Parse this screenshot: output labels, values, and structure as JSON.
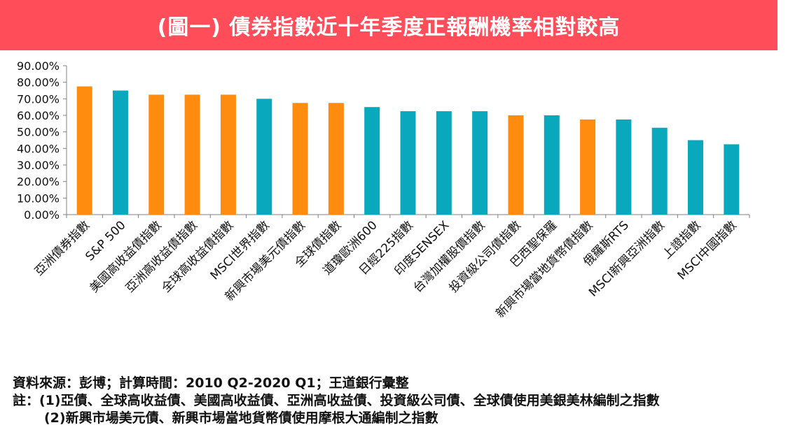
{
  "header": {
    "title": "(圖一) 債券指數近十年季度正報酬機率相對較高"
  },
  "colors": {
    "banner": "#ff4d5a",
    "orange": "#ff8c0f",
    "teal": "#0aa8bd",
    "axis": "#808080"
  },
  "chart_data": {
    "type": "bar",
    "title": "",
    "xlabel": "",
    "ylabel": "",
    "ylim": [
      0,
      90
    ],
    "yticks": [
      "0.00%",
      "10.00%",
      "20.00%",
      "30.00%",
      "40.00%",
      "50.00%",
      "60.00%",
      "70.00%",
      "80.00%",
      "90.00%"
    ],
    "categories": [
      "亞洲債券指數",
      "S&P 500",
      "美國高收益債指數",
      "亞洲高收益債指數",
      "全球高收益債指數",
      "MSCI世界指數",
      "新興市場美元債指數",
      "全球債指數",
      "道瓊歐洲600",
      "日經225指數",
      "印度SENSEX",
      "台灣加權股價指數",
      "投資級公司債指數",
      "巴西聖保羅",
      "新興市場當地貨幣債指數",
      "俄羅斯RTS",
      "MSCI新興亞洲指數",
      "上證指數",
      "MSCI中國指數"
    ],
    "values": [
      77.5,
      75,
      72.5,
      72.5,
      72.5,
      70,
      67.5,
      67.5,
      65,
      62.5,
      62.5,
      62.5,
      60,
      60,
      57.5,
      57.5,
      52.5,
      45,
      42.5
    ],
    "bar_colors": [
      "orange",
      "teal",
      "orange",
      "orange",
      "orange",
      "teal",
      "orange",
      "orange",
      "teal",
      "teal",
      "teal",
      "teal",
      "orange",
      "teal",
      "orange",
      "teal",
      "teal",
      "teal",
      "teal"
    ],
    "grid": false,
    "legend": "none"
  },
  "notes": {
    "source": "資料來源：彭博；計算時間：2010 Q2-2020 Q1；王道銀行彙整",
    "note1": "註：(1)亞債、全球高收益債、美國高收益債、亞洲高收益債、投資級公司債、全球債使用美銀美林編制之指數",
    "note2": "(2)新興市場美元債、新興市場當地貨幣債使用摩根大通編制之指數"
  }
}
